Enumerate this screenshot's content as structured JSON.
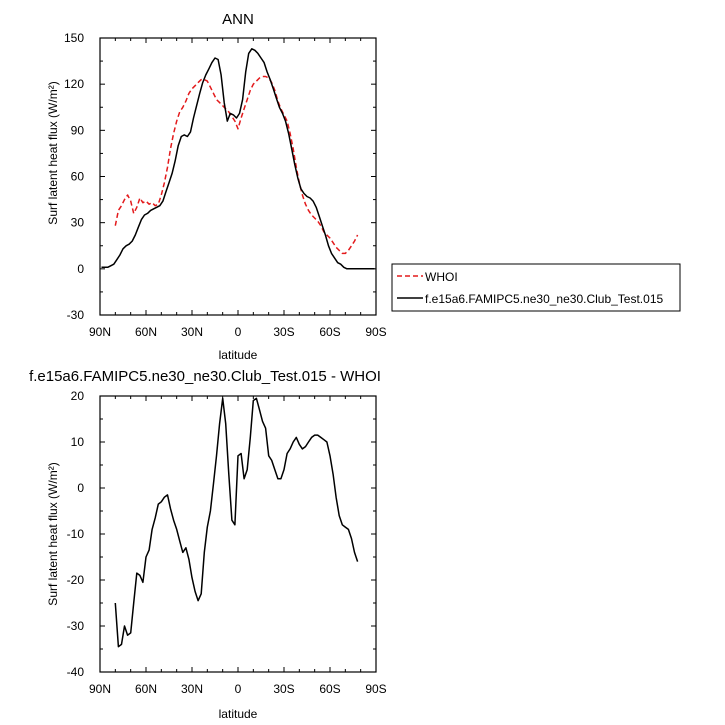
{
  "chart_data": [
    {
      "type": "line",
      "title": "ANN",
      "xlabel": "latitude",
      "ylabel": "Surf latent heat flux (W/m²)",
      "x_direction": "90N at left, 90S at right",
      "xlim": [
        90,
        -90
      ],
      "ylim": [
        -30,
        150
      ],
      "x_ticks": [
        90,
        60,
        30,
        0,
        -30,
        -60,
        -90
      ],
      "x_tick_labels": [
        "90N",
        "60N",
        "30N",
        "0",
        "30S",
        "60S",
        "90S"
      ],
      "y_ticks": [
        -30,
        0,
        30,
        60,
        90,
        120,
        150
      ],
      "y_tick_labels": [
        "-30",
        "0",
        "30",
        "60",
        "90",
        "120",
        "150"
      ],
      "grid": false,
      "legend_position": "outside-right",
      "series": [
        {
          "name": "WHOI",
          "color": "#e31a1c",
          "style": "dashed",
          "x": [
            80,
            78,
            76,
            74,
            72,
            70,
            68,
            66,
            64,
            62,
            60,
            58,
            56,
            54,
            52,
            50,
            48,
            46,
            44,
            42,
            40,
            38,
            36,
            34,
            32,
            30,
            28,
            26,
            24,
            22,
            20,
            18,
            16,
            14,
            12,
            10,
            8,
            6,
            4,
            2,
            0,
            -2,
            -4,
            -6,
            -8,
            -10,
            -12,
            -14,
            -16,
            -18,
            -20,
            -22,
            -24,
            -26,
            -28,
            -30,
            -32,
            -34,
            -36,
            -38,
            -40,
            -42,
            -44,
            -46,
            -48,
            -50,
            -52,
            -54,
            -56,
            -58,
            -60,
            -62,
            -64,
            -66,
            -68,
            -70,
            -72,
            -74,
            -76,
            -78
          ],
          "values": [
            28,
            38,
            41,
            45,
            48,
            44,
            36,
            40,
            46,
            43,
            44,
            42,
            43,
            41,
            42,
            48,
            56,
            66,
            78,
            88,
            96,
            102,
            105,
            109,
            114,
            117,
            119,
            121,
            123,
            123,
            122,
            118,
            114,
            110,
            108,
            106,
            104,
            102,
            99,
            96,
            91,
            98,
            104,
            110,
            116,
            120,
            122,
            124,
            125,
            125,
            124,
            121,
            116,
            109,
            104,
            100,
            96,
            88,
            78,
            66,
            56,
            48,
            42,
            38,
            35,
            33,
            31,
            28,
            24,
            22,
            20,
            17,
            14,
            12,
            10,
            10,
            12,
            15,
            18,
            22
          ]
        },
        {
          "name": "f.e15a6.FAMIPC5.ne30_ne30.Club_Test.015",
          "color": "#000000",
          "style": "solid",
          "x": [
            89,
            87,
            85,
            83,
            81,
            79,
            77,
            75,
            73,
            71,
            69,
            67,
            65,
            63,
            61,
            59,
            57,
            55,
            53,
            51,
            49,
            47,
            45,
            43,
            41,
            39,
            37,
            35,
            33,
            31,
            29,
            27,
            25,
            23,
            21,
            19,
            17,
            15,
            13,
            11,
            9,
            7,
            5,
            3,
            1,
            -1,
            -3,
            -5,
            -7,
            -9,
            -11,
            -13,
            -15,
            -17,
            -19,
            -21,
            -23,
            -25,
            -27,
            -29,
            -31,
            -33,
            -35,
            -37,
            -39,
            -41,
            -43,
            -45,
            -47,
            -49,
            -51,
            -53,
            -55,
            -57,
            -59,
            -61,
            -63,
            -65,
            -67,
            -69,
            -71,
            -73,
            -75,
            -77,
            -79,
            -81,
            -83,
            -85,
            -87,
            -89
          ],
          "values": [
            1,
            1,
            1,
            2,
            3,
            6,
            9,
            13,
            15,
            16,
            18,
            22,
            27,
            32,
            35,
            36,
            38,
            39,
            40,
            41,
            44,
            50,
            56,
            62,
            70,
            80,
            86,
            87,
            86,
            89,
            98,
            106,
            114,
            121,
            126,
            130,
            134,
            137,
            136,
            126,
            108,
            96,
            101,
            100,
            98,
            101,
            110,
            128,
            140,
            143,
            142,
            140,
            137,
            134,
            128,
            123,
            117,
            111,
            105,
            101,
            96,
            88,
            78,
            68,
            59,
            52,
            49,
            47,
            46,
            44,
            40,
            34,
            28,
            22,
            15,
            10,
            7,
            4,
            3,
            1,
            0,
            0,
            0,
            0,
            0,
            0,
            0,
            0,
            0,
            0
          ]
        }
      ]
    },
    {
      "type": "line",
      "title": "f.e15a6.FAMIPC5.ne30_ne30.Club_Test.015 - WHOI",
      "xlabel": "latitude",
      "ylabel": "Surf latent heat flux (W/m²)",
      "x_direction": "90N at left, 90S at right",
      "xlim": [
        90,
        -90
      ],
      "ylim": [
        -40,
        20
      ],
      "x_ticks": [
        90,
        60,
        30,
        0,
        -30,
        -60,
        -90
      ],
      "x_tick_labels": [
        "90N",
        "60N",
        "30N",
        "0",
        "30S",
        "60S",
        "90S"
      ],
      "y_ticks": [
        -40,
        -30,
        -20,
        -10,
        0,
        10,
        20
      ],
      "y_tick_labels": [
        "-40",
        "-30",
        "-20",
        "-10",
        "0",
        "10",
        "20"
      ],
      "grid": false,
      "series": [
        {
          "color": "#000000",
          "style": "solid",
          "x": [
            80,
            78,
            76,
            74,
            72,
            70,
            68,
            66,
            64,
            62,
            60,
            58,
            56,
            54,
            52,
            50,
            48,
            46,
            44,
            42,
            40,
            38,
            36,
            34,
            32,
            30,
            28,
            26,
            24,
            22,
            20,
            18,
            16,
            14,
            12,
            10,
            8,
            6,
            4,
            2,
            0,
            -2,
            -4,
            -6,
            -8,
            -10,
            -12,
            -14,
            -16,
            -18,
            -20,
            -22,
            -24,
            -26,
            -28,
            -30,
            -32,
            -34,
            -36,
            -38,
            -40,
            -42,
            -44,
            -46,
            -48,
            -50,
            -52,
            -54,
            -56,
            -58,
            -60,
            -62,
            -64,
            -66,
            -68,
            -70,
            -72,
            -74,
            -76,
            -78
          ],
          "values": [
            -25,
            -34.5,
            -34,
            -30,
            -32,
            -31.5,
            -25,
            -18.5,
            -19,
            -20.5,
            -15,
            -13.5,
            -9,
            -6.5,
            -3.5,
            -3,
            -2,
            -1.5,
            -4.5,
            -7,
            -9,
            -11.5,
            -14,
            -13,
            -15.5,
            -19.5,
            -22.5,
            -24.5,
            -23,
            -14,
            -8.5,
            -5,
            1,
            7,
            14,
            19.5,
            14,
            3,
            -7,
            -8,
            7,
            7.5,
            2,
            4,
            11,
            19,
            19.5,
            17,
            14.5,
            13,
            7,
            6,
            4,
            2,
            2,
            4,
            7.5,
            8.5,
            10,
            11,
            9.5,
            8.5,
            9,
            10,
            11,
            11.5,
            11.5,
            11,
            10.5,
            10,
            7,
            3,
            -2,
            -6,
            -8,
            -8.5,
            -9,
            -11,
            -14,
            -16
          ]
        }
      ]
    }
  ]
}
